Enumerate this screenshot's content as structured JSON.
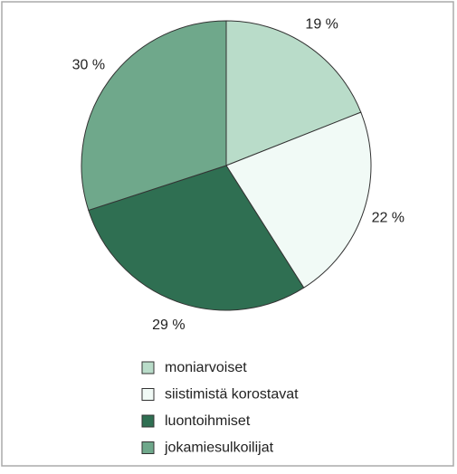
{
  "chart_data": {
    "type": "pie",
    "categories": [
      "moniarvoiset",
      "siistimistä korostavat",
      "luontoihmiset",
      "jokamiesulkoilijat"
    ],
    "values": [
      19,
      22,
      29,
      30
    ],
    "value_labels": [
      "19 %",
      "22 %",
      "29 %",
      "30 %"
    ],
    "colors": [
      "#b9dcc9",
      "#f1faf6",
      "#2f6f52",
      "#6fa88b"
    ],
    "legend": "bottom"
  }
}
